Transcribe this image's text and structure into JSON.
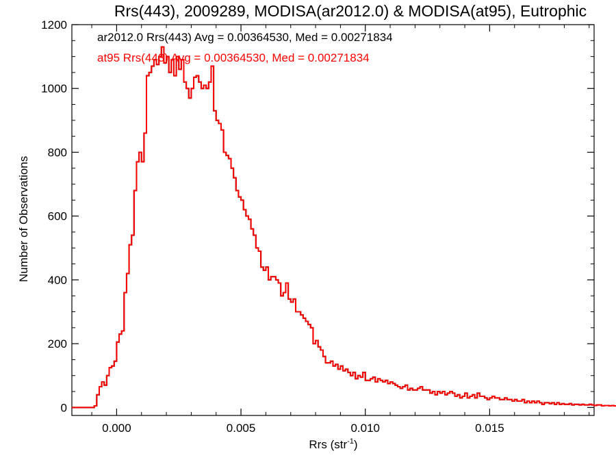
{
  "chart_data": {
    "type": "histogram",
    "title": "Rrs(443), 2009289, MODISA(ar2012.0) & MODISA(at95), Eutrophic",
    "xlabel": "Rrs (str",
    "xlabel_sup": "-1",
    "xlabel_end": ")",
    "ylabel": "Number of Observations",
    "xlim": [
      -0.0018,
      0.0192
    ],
    "ylim": [
      -25,
      1200
    ],
    "xticks": [
      0.0,
      0.005,
      0.01,
      0.015
    ],
    "xtick_labels": [
      "0.000",
      "0.005",
      "0.010",
      "0.015"
    ],
    "yticks": [
      0,
      200,
      400,
      600,
      800,
      1000,
      1200
    ],
    "ytick_labels": [
      "0",
      "200",
      "400",
      "600",
      "800",
      "1000",
      "1200"
    ],
    "bin_start": -0.0018,
    "bin_width": 0.0001,
    "annotations": [
      {
        "text": "ar2012.0 Rrs(443) Avg = 0.00364530, Med = 0.00271834",
        "color": "#000000"
      },
      {
        "text": "at95 Rrs(443) Avg = 0.00364530, Med = 0.00271834",
        "color": "#ff0000"
      }
    ],
    "series": [
      {
        "name": "ar2012.0",
        "color": "#000000",
        "values": [
          0,
          0,
          0,
          0,
          0,
          0,
          0,
          0,
          0,
          5,
          40,
          65,
          80,
          70,
          100,
          125,
          130,
          145,
          205,
          230,
          240,
          360,
          420,
          510,
          540,
          680,
          770,
          800,
          770,
          860,
          1040,
          1050,
          1070,
          1090,
          1075,
          1100,
          1130,
          1080,
          1100,
          1050,
          1090,
          1040,
          1100,
          1060,
          1090,
          1020,
          1000,
          970,
          1000,
          1035,
          1040,
          1020,
          1000,
          1010,
          1000,
          1020,
          1070,
          930,
          900,
          890,
          870,
          800,
          790,
          780,
          750,
          720,
          680,
          660,
          650,
          620,
          600,
          590,
          560,
          540,
          500,
          490,
          440,
          430,
          440,
          400,
          410,
          410,
          400,
          390,
          350,
          360,
          390,
          340,
          330,
          340,
          300,
          300,
          290,
          280,
          270,
          260,
          250,
          200,
          210,
          190,
          180,
          160,
          140,
          140,
          145,
          130,
          135,
          120,
          130,
          115,
          120,
          110,
          100,
          110,
          90,
          100,
          95,
          110,
          85,
          85,
          90,
          95,
          80,
          90,
          85,
          80,
          85,
          75,
          80,
          75,
          70,
          65,
          60,
          65,
          70,
          55,
          60,
          55,
          55,
          60,
          65,
          55,
          55,
          55,
          45,
          50,
          40,
          50,
          45,
          50,
          40,
          45,
          50,
          45,
          35,
          40,
          30,
          35,
          45,
          30,
          35,
          40,
          30,
          45,
          35,
          35,
          30,
          25,
          30,
          35,
          30,
          30,
          25,
          25,
          30,
          25,
          25,
          20,
          25,
          20,
          20,
          25,
          15,
          20,
          15,
          20,
          15,
          20,
          15,
          10,
          15,
          15,
          12,
          15,
          10,
          15,
          10,
          12,
          10,
          10,
          12,
          8,
          10,
          10,
          8,
          10,
          8,
          8,
          10,
          8,
          6,
          8,
          8,
          5,
          6,
          6,
          5,
          6,
          5,
          4,
          5,
          5,
          4,
          4
        ]
      },
      {
        "name": "at95",
        "color": "#ff0000",
        "values": [
          0,
          0,
          0,
          0,
          0,
          0,
          0,
          0,
          0,
          5,
          40,
          65,
          80,
          70,
          100,
          125,
          130,
          145,
          205,
          230,
          240,
          360,
          420,
          510,
          540,
          680,
          770,
          800,
          770,
          860,
          1040,
          1050,
          1070,
          1090,
          1075,
          1100,
          1130,
          1080,
          1100,
          1050,
          1090,
          1040,
          1100,
          1060,
          1090,
          1020,
          1000,
          970,
          1000,
          1035,
          1040,
          1020,
          1000,
          1010,
          1000,
          1020,
          1070,
          930,
          900,
          890,
          870,
          800,
          790,
          780,
          750,
          720,
          680,
          660,
          650,
          620,
          600,
          590,
          560,
          540,
          500,
          490,
          440,
          430,
          440,
          400,
          410,
          410,
          400,
          390,
          350,
          360,
          390,
          340,
          330,
          340,
          300,
          300,
          290,
          280,
          270,
          260,
          250,
          200,
          210,
          190,
          180,
          160,
          140,
          140,
          145,
          130,
          135,
          120,
          130,
          115,
          120,
          110,
          100,
          110,
          90,
          100,
          95,
          110,
          85,
          85,
          90,
          95,
          80,
          90,
          85,
          80,
          85,
          75,
          80,
          75,
          70,
          65,
          60,
          65,
          70,
          55,
          60,
          55,
          55,
          60,
          65,
          55,
          55,
          55,
          45,
          50,
          40,
          50,
          45,
          50,
          40,
          45,
          50,
          45,
          35,
          40,
          30,
          35,
          45,
          30,
          35,
          40,
          30,
          45,
          35,
          35,
          30,
          25,
          30,
          35,
          30,
          30,
          25,
          25,
          30,
          25,
          25,
          20,
          25,
          20,
          20,
          25,
          15,
          20,
          15,
          20,
          15,
          20,
          15,
          10,
          15,
          15,
          12,
          15,
          10,
          15,
          10,
          12,
          10,
          10,
          12,
          8,
          10,
          10,
          8,
          10,
          8,
          8,
          10,
          8,
          6,
          8,
          8,
          5,
          6,
          6,
          5,
          6,
          5,
          4,
          5,
          5,
          4,
          4
        ]
      }
    ]
  }
}
